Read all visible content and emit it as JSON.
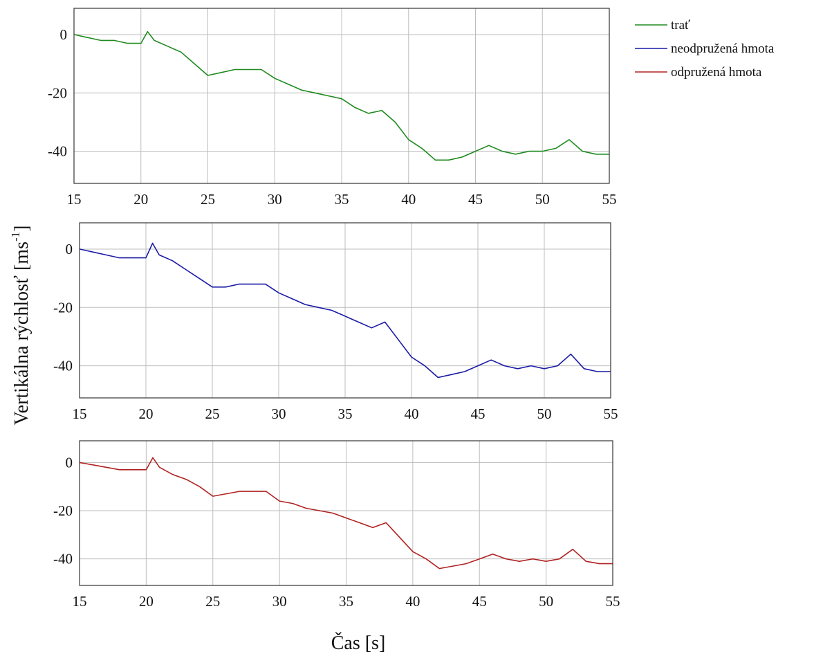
{
  "figure": {
    "ylabel": "Vertikálna rýchlosť [ms",
    "ylabel_sup": "-1",
    "ylabel_end": "]",
    "xlabel": "Čas [s]"
  },
  "legend": {
    "items": [
      {
        "label": "trať",
        "color": "#1e8a1e"
      },
      {
        "label": "neodpružená hmota",
        "color": "#1a1aa6"
      },
      {
        "label": "odpružená hmota",
        "color": "#b02222"
      }
    ]
  },
  "chart_data": [
    {
      "type": "line",
      "panel": "top",
      "title": "",
      "xlabel": "",
      "ylabel": "",
      "xlim": [
        15,
        55
      ],
      "ylim": [
        -51,
        9
      ],
      "xticks": [
        "15",
        "20",
        "25",
        "30",
        "35",
        "40",
        "45",
        "50",
        "55"
      ],
      "yticks": [
        "0",
        "-20",
        "-40"
      ],
      "grid": true,
      "series": [
        {
          "name": "trať",
          "color": "#1e8a1e",
          "x": [
            15,
            16,
            17,
            18,
            19,
            20,
            20.5,
            21,
            22,
            23,
            24,
            25,
            26,
            27,
            28,
            29,
            30,
            31,
            32,
            33,
            34,
            35,
            36,
            37,
            38,
            39,
            40,
            41,
            42,
            43,
            44,
            45,
            46,
            47,
            48,
            49,
            50,
            51,
            52,
            53,
            54,
            55
          ],
          "y": [
            0,
            -1,
            -2,
            -2,
            -3,
            -3,
            1,
            -2,
            -4,
            -6,
            -10,
            -14,
            -13,
            -12,
            -12,
            -12,
            -15,
            -17,
            -19,
            -20,
            -21,
            -22,
            -25,
            -27,
            -26,
            -30,
            -36,
            -39,
            -43,
            -43,
            -42,
            -40,
            -38,
            -40,
            -41,
            -40,
            -40,
            -39,
            -36,
            -40,
            -41,
            -41
          ]
        }
      ]
    },
    {
      "type": "line",
      "panel": "middle",
      "title": "",
      "xlabel": "",
      "ylabel": "",
      "xlim": [
        15,
        55
      ],
      "ylim": [
        -51,
        9
      ],
      "xticks": [
        "15",
        "20",
        "25",
        "30",
        "35",
        "40",
        "45",
        "50",
        "55"
      ],
      "yticks": [
        "0",
        "-20",
        "-40"
      ],
      "grid": true,
      "series": [
        {
          "name": "neodpružená hmota",
          "color": "#1a1aa6",
          "x": [
            15,
            16,
            17,
            18,
            19,
            20,
            20.5,
            21,
            22,
            23,
            24,
            25,
            26,
            27,
            28,
            29,
            30,
            31,
            32,
            33,
            34,
            35,
            36,
            37,
            38,
            39,
            40,
            41,
            42,
            43,
            44,
            45,
            46,
            47,
            48,
            49,
            50,
            51,
            52,
            53,
            54,
            55
          ],
          "y": [
            0,
            -1,
            -2,
            -3,
            -3,
            -3,
            2,
            -2,
            -4,
            -7,
            -10,
            -13,
            -13,
            -12,
            -12,
            -12,
            -15,
            -17,
            -19,
            -20,
            -21,
            -23,
            -25,
            -27,
            -25,
            -31,
            -37,
            -40,
            -44,
            -43,
            -42,
            -40,
            -38,
            -40,
            -41,
            -40,
            -41,
            -40,
            -36,
            -41,
            -42,
            -42
          ]
        }
      ]
    },
    {
      "type": "line",
      "panel": "bottom",
      "title": "",
      "xlabel": "",
      "ylabel": "",
      "xlim": [
        15,
        55
      ],
      "ylim": [
        -51,
        9
      ],
      "xticks": [
        "15",
        "20",
        "25",
        "30",
        "35",
        "40",
        "45",
        "50",
        "55"
      ],
      "yticks": [
        "0",
        "-20",
        "-40"
      ],
      "grid": true,
      "series": [
        {
          "name": "odpružená hmota",
          "color": "#b02222",
          "x": [
            15,
            16,
            17,
            18,
            19,
            20,
            20.5,
            21,
            22,
            23,
            24,
            25,
            26,
            27,
            28,
            29,
            30,
            31,
            32,
            33,
            34,
            35,
            36,
            37,
            38,
            39,
            40,
            41,
            42,
            43,
            44,
            45,
            46,
            47,
            48,
            49,
            50,
            51,
            52,
            53,
            54,
            55
          ],
          "y": [
            0,
            -1,
            -2,
            -3,
            -3,
            -3,
            2,
            -2,
            -5,
            -7,
            -10,
            -14,
            -13,
            -12,
            -12,
            -12,
            -16,
            -17,
            -19,
            -20,
            -21,
            -23,
            -25,
            -27,
            -25,
            -31,
            -37,
            -40,
            -44,
            -43,
            -42,
            -40,
            -38,
            -40,
            -41,
            -40,
            -41,
            -40,
            -36,
            -41,
            -42,
            -42
          ]
        }
      ]
    }
  ]
}
